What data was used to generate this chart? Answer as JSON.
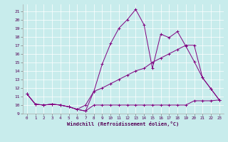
{
  "xlabel": "Windchill (Refroidissement éolien,°C)",
  "background_color": "#c8ecec",
  "line_color": "#800080",
  "xlim": [
    -0.5,
    23.5
  ],
  "ylim": [
    9,
    21.8
  ],
  "xticks": [
    0,
    1,
    2,
    3,
    4,
    5,
    6,
    7,
    8,
    9,
    10,
    11,
    12,
    13,
    14,
    15,
    16,
    17,
    18,
    19,
    20,
    21,
    22,
    23
  ],
  "yticks": [
    9,
    10,
    11,
    12,
    13,
    14,
    15,
    16,
    17,
    18,
    19,
    20,
    21
  ],
  "series_flat": [
    [
      0,
      11.3
    ],
    [
      1,
      10.1
    ],
    [
      2,
      10.0
    ],
    [
      3,
      10.1
    ],
    [
      4,
      10.0
    ],
    [
      5,
      9.8
    ],
    [
      6,
      9.5
    ],
    [
      7,
      9.3
    ],
    [
      8,
      10.0
    ],
    [
      9,
      10.0
    ],
    [
      10,
      10.0
    ],
    [
      11,
      10.0
    ],
    [
      12,
      10.0
    ],
    [
      13,
      10.0
    ],
    [
      14,
      10.0
    ],
    [
      15,
      10.0
    ],
    [
      16,
      10.0
    ],
    [
      17,
      10.0
    ],
    [
      18,
      10.0
    ],
    [
      19,
      10.0
    ],
    [
      20,
      10.5
    ],
    [
      21,
      10.5
    ],
    [
      22,
      10.5
    ],
    [
      23,
      10.6
    ]
  ],
  "series_main": [
    [
      0,
      11.3
    ],
    [
      1,
      10.1
    ],
    [
      2,
      10.0
    ],
    [
      3,
      10.1
    ],
    [
      4,
      10.0
    ],
    [
      5,
      9.8
    ],
    [
      6,
      9.5
    ],
    [
      7,
      10.0
    ],
    [
      8,
      11.6
    ],
    [
      9,
      14.8
    ],
    [
      10,
      17.2
    ],
    [
      11,
      19.0
    ],
    [
      12,
      20.0
    ],
    [
      13,
      21.2
    ],
    [
      14,
      19.4
    ],
    [
      15,
      14.3
    ],
    [
      16,
      18.3
    ],
    [
      17,
      17.9
    ],
    [
      18,
      18.6
    ],
    [
      19,
      16.9
    ],
    [
      20,
      15.1
    ],
    [
      21,
      13.2
    ],
    [
      22,
      11.9
    ],
    [
      23,
      10.6
    ]
  ],
  "series_diag": [
    [
      0,
      11.3
    ],
    [
      1,
      10.1
    ],
    [
      2,
      10.0
    ],
    [
      3,
      10.1
    ],
    [
      4,
      10.0
    ],
    [
      5,
      9.8
    ],
    [
      6,
      9.5
    ],
    [
      7,
      9.3
    ],
    [
      8,
      11.6
    ],
    [
      9,
      12.0
    ],
    [
      10,
      12.5
    ],
    [
      11,
      13.0
    ],
    [
      12,
      13.5
    ],
    [
      13,
      14.0
    ],
    [
      14,
      14.3
    ],
    [
      15,
      15.0
    ],
    [
      16,
      15.5
    ],
    [
      17,
      16.0
    ],
    [
      18,
      16.5
    ],
    [
      19,
      17.0
    ],
    [
      20,
      17.0
    ],
    [
      21,
      13.2
    ],
    [
      22,
      11.9
    ],
    [
      23,
      10.6
    ]
  ]
}
